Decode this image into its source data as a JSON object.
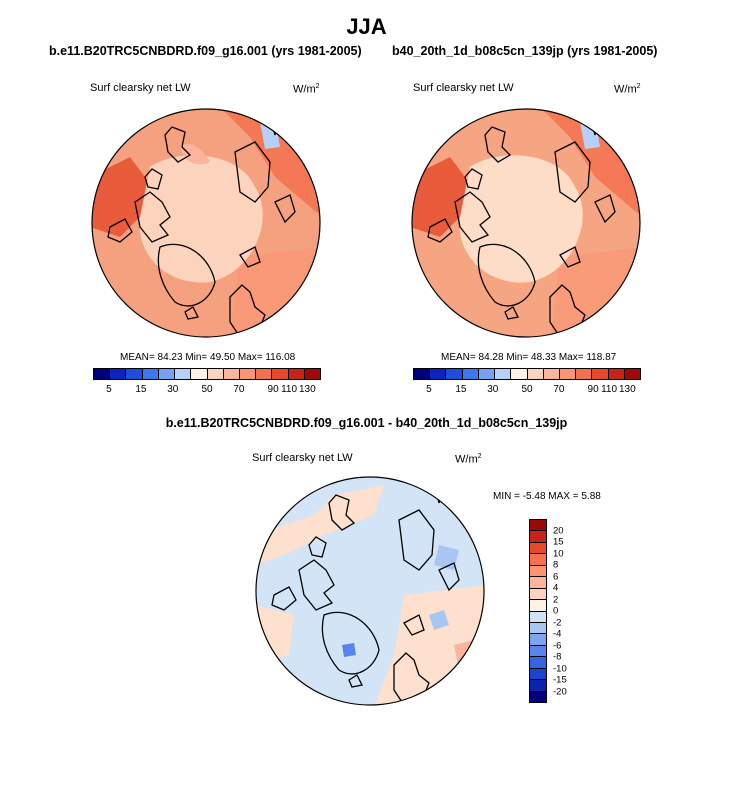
{
  "header": {
    "title": "JJA"
  },
  "colors": {
    "abs_scale": [
      "#00007f",
      "#0b23bf",
      "#1b4fd9",
      "#3e78ec",
      "#73a3f5",
      "#b5d0fa",
      "#fff1e6",
      "#fdd3bd",
      "#fcb59a",
      "#fb9473",
      "#f4714f",
      "#e54a2b",
      "#c72417",
      "#9c0a05"
    ],
    "diff_scale": [
      "#9c0a05",
      "#c72417",
      "#e54a2b",
      "#f4714f",
      "#fb9473",
      "#fcb59a",
      "#fdd3bd",
      "#fff1e6",
      "#cfe2f7",
      "#a7c6f2",
      "#7ea6ee",
      "#5686ec",
      "#3464e0",
      "#1c44cc",
      "#0b23a8",
      "#00007f"
    ],
    "land_outline": "#000000",
    "left_field": "#f5a07e",
    "right_field": "#f6a583",
    "arctic_left": "#fcd3bc",
    "arctic_right": "#fdddc8",
    "diff_field": "#d2e4f6",
    "diff_warm": "#fde0cd"
  },
  "panels": {
    "left": {
      "case": "b.e11.B20TRC5CNBDRD.f09_g16.001 (yrs 1981-2005)",
      "variable": "Surf clearsky net LW",
      "units": "W/m",
      "units_sup": "2",
      "stats": "MEAN=  84.23  Min=  49.50  Max= 116.08"
    },
    "right": {
      "case": "b40_20th_1d_b08c5cn_139jp (yrs 1981-2005)",
      "variable": "Surf clearsky net LW",
      "units": "W/m",
      "units_sup": "2",
      "stats": "MEAN=  84.28  Min=  48.33  Max= 118.87"
    },
    "diff": {
      "title": "b.e11.B20TRC5CNBDRD.f09_g16.001 - b40_20th_1d_b08c5cn_139jp",
      "variable": "Surf clearsky net LW",
      "units": "W/m",
      "units_sup": "2",
      "stats": "MIN =  -5.48 MAX =   5.88"
    }
  },
  "colorbar_abs": {
    "labels": [
      "5",
      "15",
      "30",
      "50",
      "70",
      "90",
      "110",
      "130"
    ]
  },
  "colorbar_diff": {
    "labels": [
      "20",
      "15",
      "10",
      "8",
      "6",
      "4",
      "2",
      "0",
      "-2",
      "-4",
      "-6",
      "-8",
      "-10",
      "-15",
      "-20"
    ]
  }
}
